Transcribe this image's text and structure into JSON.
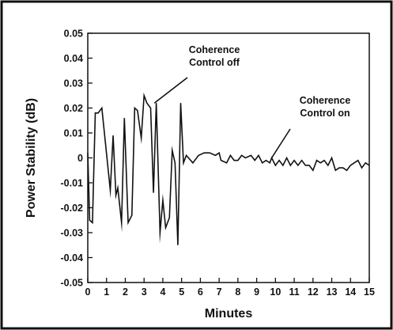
{
  "chart_data": {
    "type": "line",
    "title": "",
    "xlabel": "Minutes",
    "ylabel": "Power Stability (dB)",
    "xlim": [
      0,
      15
    ],
    "ylim": [
      -0.05,
      0.05
    ],
    "x_ticks": [
      0,
      1,
      2,
      3,
      4,
      5,
      6,
      7,
      8,
      9,
      10,
      11,
      12,
      13,
      14,
      15
    ],
    "y_ticks": [
      0.05,
      0.04,
      0.03,
      0.02,
      0.01,
      0,
      -0.01,
      -0.02,
      -0.03,
      -0.04,
      -0.05
    ],
    "y_tick_labels": [
      "0.05",
      "0.04",
      "0.03",
      "0.02",
      "0.01",
      "0",
      "-0.01",
      "-0.02",
      "-0.03",
      "-0.04",
      "-0.05"
    ],
    "grid": false,
    "line_color": "#111111",
    "series": [
      {
        "points": [
          [
            0.0,
            0.002
          ],
          [
            0.1,
            -0.025
          ],
          [
            0.25,
            -0.026
          ],
          [
            0.4,
            0.018
          ],
          [
            0.55,
            0.018
          ],
          [
            0.75,
            0.02
          ],
          [
            1.05,
            -0.002
          ],
          [
            1.2,
            -0.013
          ],
          [
            1.35,
            0.009
          ],
          [
            1.5,
            -0.015
          ],
          [
            1.6,
            -0.012
          ],
          [
            1.8,
            -0.026
          ],
          [
            1.95,
            0.016
          ],
          [
            2.15,
            -0.026
          ],
          [
            2.35,
            -0.023
          ],
          [
            2.5,
            0.02
          ],
          [
            2.65,
            0.019
          ],
          [
            2.85,
            0.008
          ],
          [
            3.0,
            0.025
          ],
          [
            3.15,
            0.022
          ],
          [
            3.35,
            0.02
          ],
          [
            3.5,
            -0.014
          ],
          [
            3.65,
            0.022
          ],
          [
            3.85,
            -0.03
          ],
          [
            4.0,
            -0.017
          ],
          [
            4.15,
            -0.028
          ],
          [
            4.35,
            -0.024
          ],
          [
            4.5,
            0.003
          ],
          [
            4.65,
            -0.002
          ],
          [
            4.8,
            -0.035
          ],
          [
            4.95,
            0.022
          ],
          [
            5.1,
            -0.002
          ],
          [
            5.25,
            0.001
          ],
          [
            5.6,
            -0.002
          ],
          [
            5.9,
            0.001
          ],
          [
            6.2,
            0.002
          ],
          [
            6.5,
            0.002
          ],
          [
            6.8,
            0.001
          ],
          [
            7.0,
            0.002
          ],
          [
            7.1,
            -0.001
          ],
          [
            7.4,
            -0.002
          ],
          [
            7.6,
            0.001
          ],
          [
            7.8,
            -0.001
          ],
          [
            8.0,
            -0.001
          ],
          [
            8.2,
            0.001
          ],
          [
            8.4,
            0.0
          ],
          [
            8.7,
            0.001
          ],
          [
            8.9,
            -0.001
          ],
          [
            9.1,
            0.001
          ],
          [
            9.3,
            -0.002
          ],
          [
            9.5,
            -0.001
          ],
          [
            9.7,
            -0.002
          ],
          [
            9.8,
            0.0
          ],
          [
            10.0,
            -0.003
          ],
          [
            10.2,
            -0.001
          ],
          [
            10.4,
            -0.003
          ],
          [
            10.6,
            0.0
          ],
          [
            10.8,
            -0.003
          ],
          [
            11.0,
            -0.001
          ],
          [
            11.2,
            -0.003
          ],
          [
            11.4,
            -0.001
          ],
          [
            11.6,
            -0.003
          ],
          [
            11.8,
            -0.003
          ],
          [
            12.0,
            -0.005
          ],
          [
            12.2,
            -0.001
          ],
          [
            12.4,
            -0.002
          ],
          [
            12.6,
            -0.001
          ],
          [
            12.8,
            -0.003
          ],
          [
            13.0,
            0.0
          ],
          [
            13.2,
            -0.005
          ],
          [
            13.4,
            -0.004
          ],
          [
            13.6,
            -0.004
          ],
          [
            13.8,
            -0.005
          ],
          [
            14.0,
            -0.003
          ],
          [
            14.2,
            -0.002
          ],
          [
            14.4,
            -0.001
          ],
          [
            14.6,
            -0.004
          ],
          [
            14.8,
            -0.002
          ],
          [
            15.0,
            -0.003
          ]
        ]
      }
    ],
    "annotations": [
      {
        "text_lines": [
          "Coherence",
          "Control off"
        ],
        "arrow_to": [
          3.55,
          0.022
        ]
      },
      {
        "text_lines": [
          "Coherence",
          "Control on"
        ],
        "arrow_to": [
          9.8,
          0.0
        ]
      }
    ]
  }
}
